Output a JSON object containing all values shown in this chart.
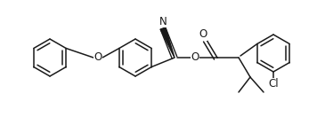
{
  "background": "#ffffff",
  "line_color": "#1a1a1a",
  "line_width": 1.1,
  "figsize": [
    3.56,
    1.32
  ],
  "dpi": 100,
  "xlim": [
    0.0,
    3.56
  ],
  "ylim": [
    0.0,
    1.32
  ]
}
